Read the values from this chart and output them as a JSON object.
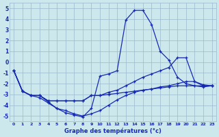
{
  "title": "Graphe des températures (°c)",
  "bg_color": "#cce8ec",
  "grid_color": "#99b8cc",
  "line_color": "#1428b4",
  "x_ticks": [
    0,
    1,
    2,
    3,
    4,
    5,
    6,
    7,
    8,
    9,
    10,
    11,
    12,
    13,
    14,
    15,
    16,
    17,
    18,
    19,
    20,
    21,
    22,
    23
  ],
  "ylim": [
    -5.5,
    5.5
  ],
  "yticks": [
    -5,
    -4,
    -3,
    -2,
    -1,
    0,
    1,
    2,
    3,
    4,
    5
  ],
  "lines": [
    [
      -0.8,
      -2.7,
      -3.1,
      -3.1,
      -3.7,
      -4.3,
      -4.7,
      -4.9,
      -5.1,
      -4.3,
      -1.3,
      -1.1,
      -0.8,
      3.9,
      4.8,
      4.8,
      3.5,
      1.0,
      0.2,
      -1.4,
      -2.0,
      -2.2,
      -2.3,
      -2.2
    ],
    [
      -0.8,
      -2.7,
      -3.1,
      -3.1,
      -3.6,
      -3.6,
      -3.6,
      -3.6,
      -3.6,
      -3.1,
      -3.1,
      -2.8,
      -2.6,
      -2.2,
      -1.8,
      -1.4,
      -1.1,
      -0.8,
      -0.5,
      0.4,
      0.4,
      -1.8,
      -2.2,
      -2.2
    ],
    [
      -0.8,
      -2.7,
      -3.1,
      -3.1,
      -3.6,
      -3.6,
      -3.6,
      -3.6,
      -3.6,
      -3.1,
      -3.1,
      -3.0,
      -2.9,
      -2.8,
      -2.7,
      -2.6,
      -2.5,
      -2.3,
      -2.2,
      -2.0,
      -1.8,
      -1.8,
      -2.1,
      -2.2
    ],
    [
      -0.8,
      -2.7,
      -3.1,
      -3.3,
      -3.8,
      -4.3,
      -4.5,
      -4.8,
      -5.0,
      -4.8,
      -4.5,
      -4.0,
      -3.5,
      -3.1,
      -2.8,
      -2.6,
      -2.5,
      -2.4,
      -2.3,
      -2.2,
      -2.2,
      -2.2,
      -2.2,
      -2.2
    ]
  ]
}
